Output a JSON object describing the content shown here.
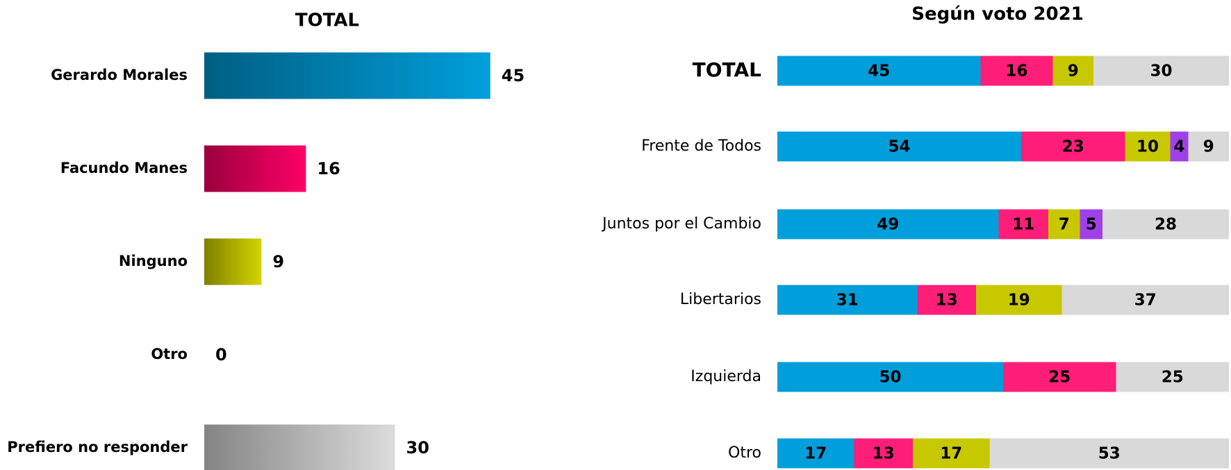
{
  "chart_data": [
    {
      "type": "bar",
      "title": "TOTAL",
      "categories": [
        "Gerardo Morales",
        "Facundo Manes",
        "Ninguno",
        "Otro",
        "Prefiero no responder"
      ],
      "values": [
        45,
        16,
        9,
        0,
        30
      ],
      "colors": [
        "#009fdb",
        "#ff0066",
        "#d4d400",
        "#b0b0b0",
        "#dcdcdc"
      ]
    },
    {
      "type": "stacked_bar",
      "title": "Según voto 2021",
      "categories": [
        "TOTAL",
        "Frente de Todos",
        "Juntos por el Cambio",
        "Libertarios",
        "Izquierda",
        "Otro"
      ],
      "series": [
        {
          "color": "#009fdb",
          "values": [
            45,
            54,
            49,
            31,
            50,
            17
          ]
        },
        {
          "color": "#ff1e78",
          "values": [
            16,
            23,
            11,
            13,
            25,
            13
          ]
        },
        {
          "color": "#c8c800",
          "values": [
            9,
            10,
            7,
            19,
            null,
            17
          ]
        },
        {
          "color": "#a040e8",
          "values": [
            null,
            4,
            5,
            null,
            null,
            null
          ]
        },
        {
          "color": "#d9d9d9",
          "values": [
            30,
            9,
            28,
            37,
            25,
            53
          ]
        }
      ]
    }
  ]
}
